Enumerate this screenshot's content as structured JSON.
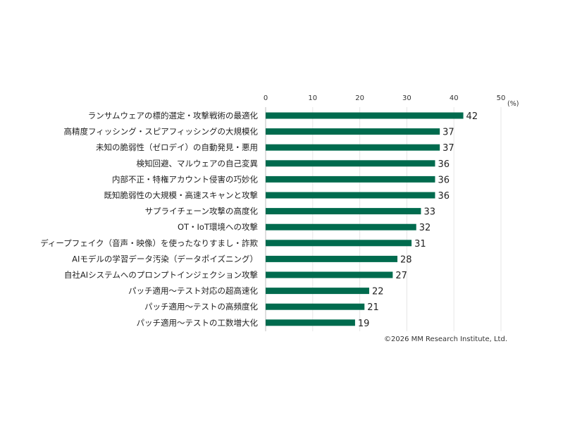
{
  "chart_data": {
    "type": "bar",
    "orientation": "horizontal",
    "categories": [
      "ランサムウェアの標的選定・攻撃戦術の最適化",
      "高精度フィッシング・スピアフィッシングの大規模化",
      "未知の脆弱性（ゼロデイ）の自動発見・悪用",
      "検知回避、マルウェアの自己変異",
      "内部不正・特権アカウント侵害の巧妙化",
      "既知脆弱性の大規模・高速スキャンと攻撃",
      "サプライチェーン攻撃の高度化",
      "OT・IoT環境への攻撃",
      "ディープフェイク（音声・映像）を使ったなりすまし・詐欺",
      "AIモデルの学習データ汚染（データポイズニング）",
      "自社AIシステムへのプロンプトインジェクション攻撃",
      "パッチ適用～テスト対応の超高速化",
      "パッチ適用～テストの高頻度化",
      "パッチ適用～テストの工数増大化"
    ],
    "values": [
      42,
      37,
      37,
      36,
      36,
      36,
      33,
      32,
      31,
      28,
      27,
      22,
      21,
      19
    ],
    "xlim": [
      0,
      50
    ],
    "xticks": [
      0,
      10,
      20,
      30,
      40,
      50
    ],
    "unit_label": "(%)",
    "bar_color": "#006b4e",
    "grid": true,
    "legend": "none"
  },
  "credit": "©2026 MM Research Institute, Ltd."
}
